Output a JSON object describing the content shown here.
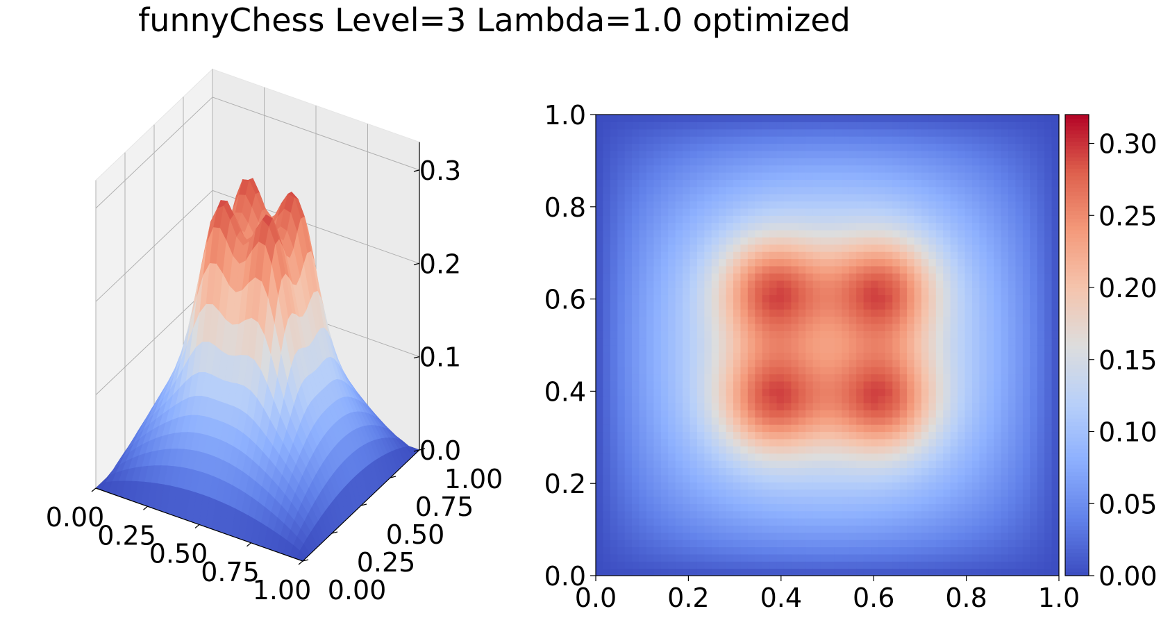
{
  "title": "funnyChess Level=3 Lambda=1.0 optimized",
  "colors": {
    "colormap": "coolwarm",
    "cmap_low": "#3b4cc0",
    "cmap_mid": "#dddddd",
    "cmap_high": "#b40426",
    "pane": "#f2f2f2",
    "grid": "#b0b0b0"
  },
  "chart_data": [
    {
      "type": "surface3d",
      "function": "funnyChess",
      "x": {
        "min": 0,
        "max": 1,
        "tick_labels": [
          "0.00",
          "0.25",
          "0.50",
          "0.75",
          "1.00"
        ]
      },
      "y": {
        "min": 0,
        "max": 1,
        "tick_labels": [
          "0.00",
          "0.25",
          "0.50",
          "0.75",
          "1.00"
        ]
      },
      "z": {
        "min": 0,
        "max": 0.32,
        "tick_labels": [
          "0.0",
          "0.1",
          "0.2",
          "0.3"
        ]
      },
      "peaks": [
        {
          "x": 0.375,
          "y": 0.375,
          "z": 0.32
        },
        {
          "x": 0.625,
          "y": 0.375,
          "z": 0.32
        },
        {
          "x": 0.375,
          "y": 0.625,
          "z": 0.32
        },
        {
          "x": 0.625,
          "y": 0.625,
          "z": 0.32
        }
      ],
      "center_value": 0.17,
      "grid_on": true
    },
    {
      "type": "heatmap",
      "x": {
        "min": 0,
        "max": 1,
        "tick_labels": [
          "0.0",
          "0.2",
          "0.4",
          "0.6",
          "0.8",
          "1.0"
        ]
      },
      "y": {
        "min": 0,
        "max": 1,
        "tick_labels": [
          "0.0",
          "0.2",
          "0.4",
          "0.6",
          "0.8",
          "1.0"
        ]
      },
      "grid_cells": 64,
      "peaks": [
        {
          "x": 0.375,
          "y": 0.375,
          "z": 0.32
        },
        {
          "x": 0.625,
          "y": 0.375,
          "z": 0.32
        },
        {
          "x": 0.375,
          "y": 0.625,
          "z": 0.32
        },
        {
          "x": 0.625,
          "y": 0.625,
          "z": 0.32
        }
      ],
      "colorbar": {
        "min": 0,
        "max": 0.32,
        "tick_labels": [
          "0.00",
          "0.05",
          "0.10",
          "0.15",
          "0.20",
          "0.25",
          "0.30"
        ]
      }
    }
  ]
}
